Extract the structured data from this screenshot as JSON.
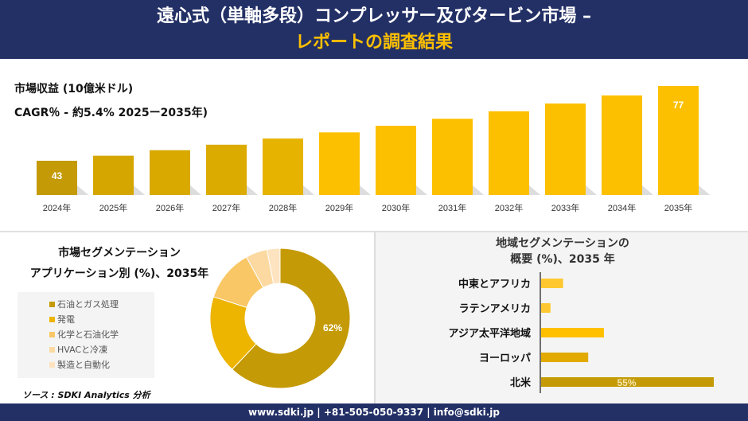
{
  "header": {
    "title_line1": "遠心式（単軸多段）コンプレッサー及びタービン市場 –",
    "title_line2": "レポートの調査結果"
  },
  "revenue": {
    "subtitle": "市場収益 (10億米ドル)",
    "cagr": "CAGR％ - 約5.4% 2025ー2035年)"
  },
  "chart_data": [
    {
      "type": "bar",
      "title": "市場収益 (10億米ドル)",
      "categories": [
        "2024年",
        "2025年",
        "2026年",
        "2027年",
        "2028年",
        "2029年",
        "2030年",
        "2031年",
        "2032年",
        "2033年",
        "2034年",
        "2035年"
      ],
      "values": [
        43,
        45.3,
        47.8,
        50.3,
        53.1,
        55.9,
        58.9,
        62.1,
        65.5,
        69.0,
        72.7,
        77
      ],
      "data_labels": {
        "0": "43",
        "11": "77"
      },
      "colors": [
        "#c49a06",
        "#d6a600",
        "#d9a900",
        "#dcab00",
        "#e6b300",
        "#fcc000",
        "#fcc000",
        "#fcc000",
        "#fcc000",
        "#fcc000",
        "#fcc000",
        "#fcc000"
      ]
    },
    {
      "type": "pie",
      "title": "市場セグメンテーション アプリケーション別 (%)、2035年",
      "categories": [
        "石油とガス処理",
        "発電",
        "化学と石油化学",
        "HVACと冷凍",
        "製造と自動化"
      ],
      "values": [
        62,
        18,
        12,
        5,
        3
      ],
      "data_labels": {
        "0": "62%"
      },
      "colors": [
        "#c49a06",
        "#edb400",
        "#f9c766",
        "#fcd9a0",
        "#fde3c0"
      ],
      "legend": "left"
    },
    {
      "type": "bar",
      "orientation": "horizontal",
      "title": "地域セグメンテーションの 概要 (%)、2035 年",
      "categories": [
        "中東とアフリカ",
        "ラテンアメリカ",
        "アジア太平洋地域",
        "ヨーロッパ",
        "北米"
      ],
      "values": [
        7,
        3,
        20,
        15,
        55
      ],
      "data_labels": {
        "4": "55%"
      },
      "colors": [
        "#ffc830",
        "#ffc830",
        "#ffc000",
        "#e2aa00",
        "#c49a06"
      ]
    }
  ],
  "segment": {
    "title1": "市場セグメンテーション",
    "title2": "アプリケーション別 (%)、2035年"
  },
  "region": {
    "title1": "地域セグメンテーションの",
    "title2": "概要 (%)、2035 年"
  },
  "source": "ソース : SDKI Analytics 分析",
  "footer": "www.sdki.jp | +81-505-050-9337 | info@sdki.jp"
}
